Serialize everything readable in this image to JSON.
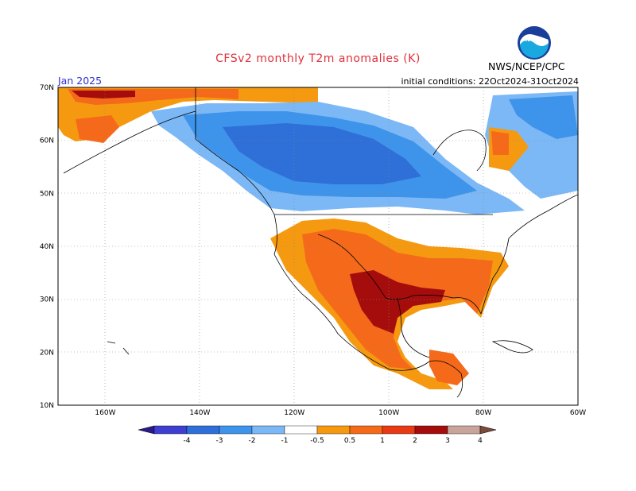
{
  "header": {
    "title": "CFSv2 monthly T2m anomalies (K)",
    "month": "Jan 2025",
    "initial_conditions": "initial conditions: 22Oct2024-31Oct2024",
    "agency": "NWS/NCEP/CPC",
    "logo_text": "NOAA"
  },
  "axes": {
    "lat_labels": [
      "70N",
      "60N",
      "50N",
      "40N",
      "30N",
      "20N",
      "10N"
    ],
    "lat_values": [
      70,
      60,
      50,
      40,
      30,
      20,
      10
    ],
    "lon_labels": [
      "160W",
      "140W",
      "120W",
      "100W",
      "80W",
      "60W"
    ],
    "lon_values": [
      -160,
      -140,
      -120,
      -100,
      -80,
      -60
    ],
    "lon_range": [
      -170,
      -60
    ],
    "lat_range": [
      10,
      70
    ]
  },
  "colorbar": {
    "labels": [
      "-4",
      "-3",
      "-2",
      "-1",
      "-0.5",
      "0.5",
      "1",
      "2",
      "3",
      "4"
    ],
    "colors": [
      "#2a1a8a",
      "#3e3fd0",
      "#2f6fd8",
      "#3d94ea",
      "#7cb8f5",
      "#ffffff",
      "#f59a10",
      "#f56a1a",
      "#e83a14",
      "#a50d0d",
      "#c9a49a",
      "#7a4a3a"
    ]
  },
  "colors": {
    "warm_light": "#f59a10",
    "warm": "#f56a1a",
    "warm_strong": "#e83a14",
    "warm_extreme": "#a50d0d",
    "cool_light": "#7cb8f5",
    "cool": "#3d94ea",
    "cool_strong": "#2f6fd8",
    "title_red": "#e0303a",
    "month_blue": "#3030d0"
  }
}
